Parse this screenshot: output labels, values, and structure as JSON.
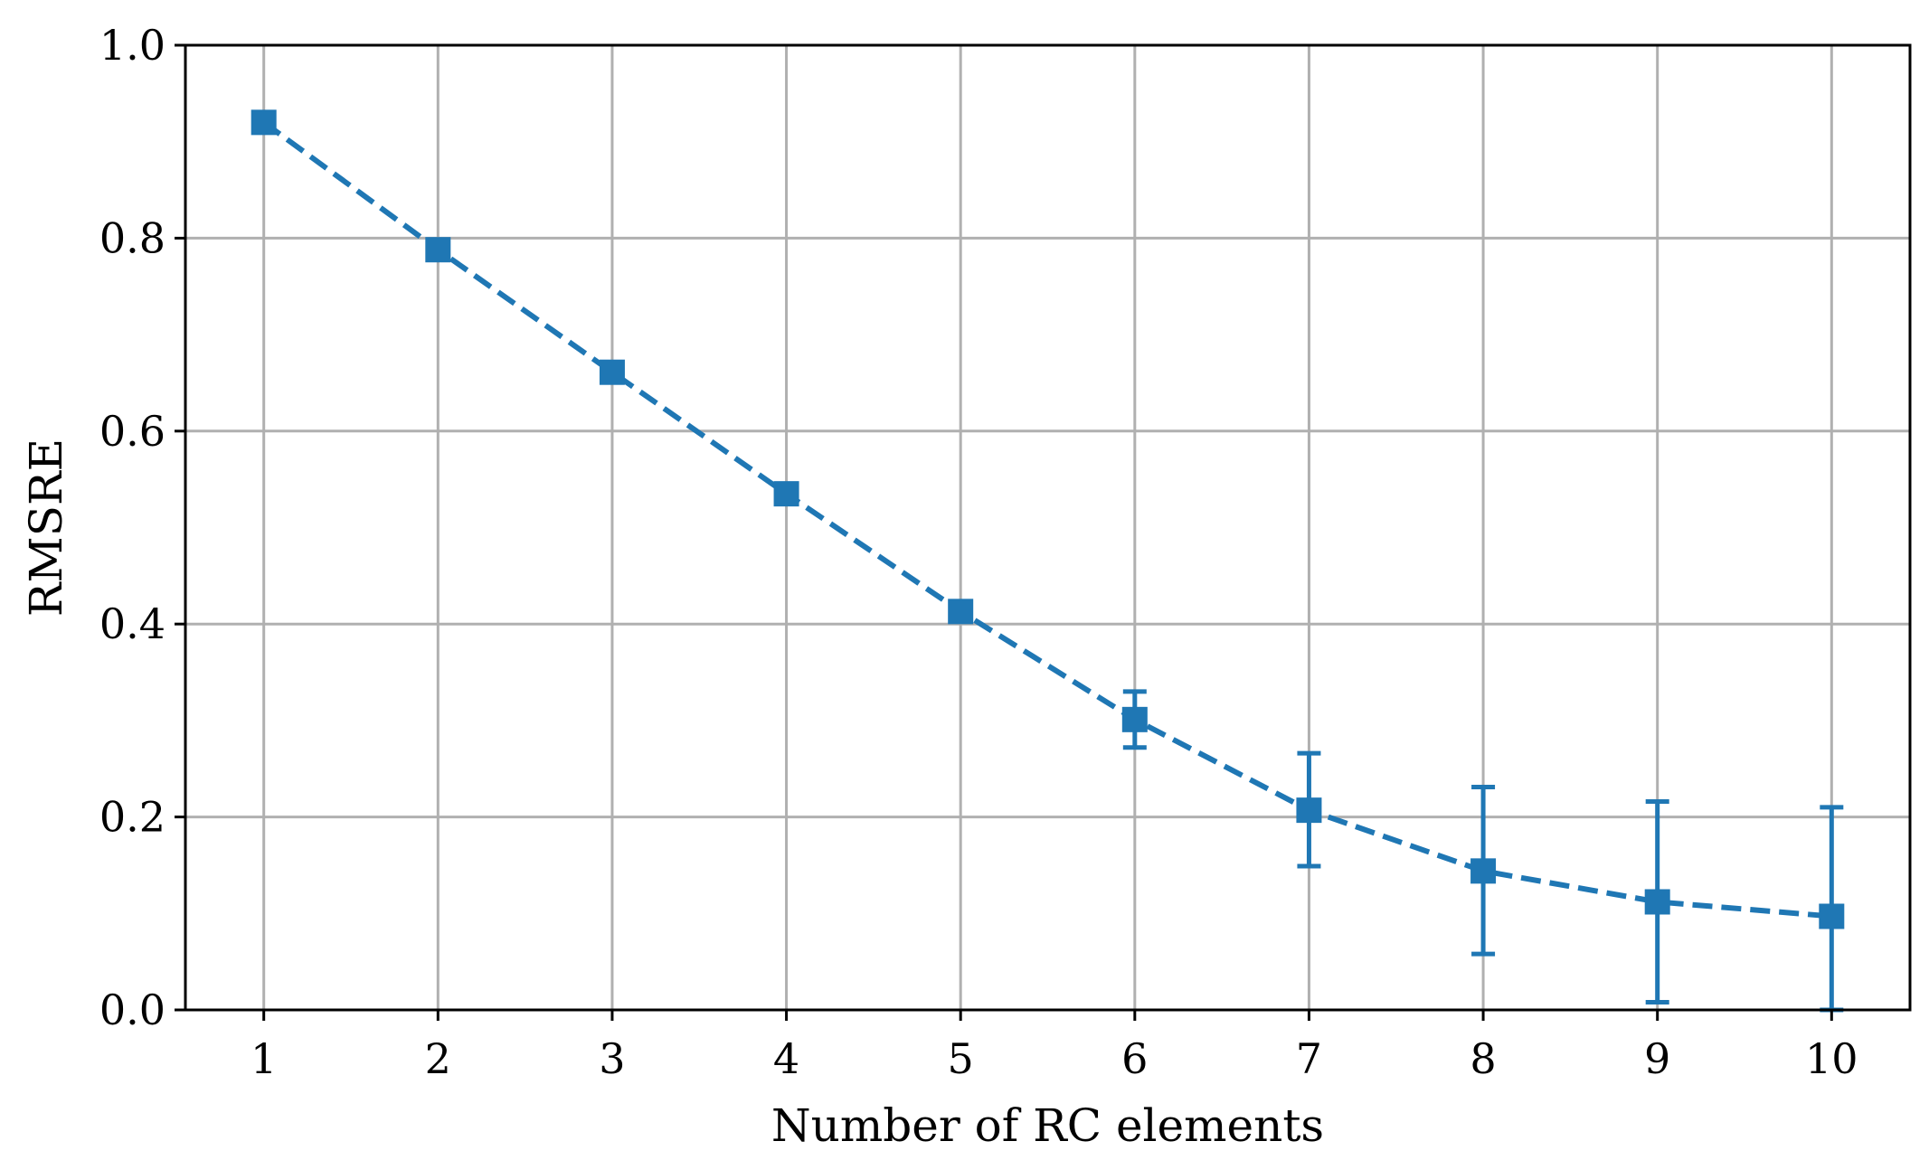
{
  "chart_data": {
    "type": "line",
    "title": "",
    "xlabel": "Number of RC elements",
    "ylabel": "RMSRE",
    "xlim": [
      0.55,
      10.45
    ],
    "ylim": [
      0.0,
      1.0
    ],
    "x_ticks": [
      1,
      2,
      3,
      4,
      5,
      6,
      7,
      8,
      9,
      10
    ],
    "x_tick_labels": [
      "1",
      "2",
      "3",
      "4",
      "5",
      "6",
      "7",
      "8",
      "9",
      "10"
    ],
    "y_ticks": [
      0.0,
      0.2,
      0.4,
      0.6,
      0.8,
      1.0
    ],
    "y_tick_labels": [
      "0.0",
      "0.2",
      "0.4",
      "0.6",
      "0.8",
      "1.0"
    ],
    "grid": true,
    "series": [
      {
        "x": [
          1,
          2,
          3,
          4,
          5,
          6,
          7,
          8,
          9,
          10
        ],
        "y": [
          0.92,
          0.788,
          0.661,
          0.535,
          0.413,
          0.301,
          0.207,
          0.144,
          0.112,
          0.097
        ],
        "yerr_lower": [
          0.92,
          0.788,
          0.661,
          0.535,
          0.413,
          0.272,
          0.149,
          0.058,
          0.008,
          0.0
        ],
        "yerr_upper": [
          0.92,
          0.788,
          0.661,
          0.535,
          0.413,
          0.33,
          0.266,
          0.231,
          0.216,
          0.21
        ],
        "color": "#1f77b4",
        "line_style": "dashed",
        "marker": "square"
      }
    ]
  }
}
